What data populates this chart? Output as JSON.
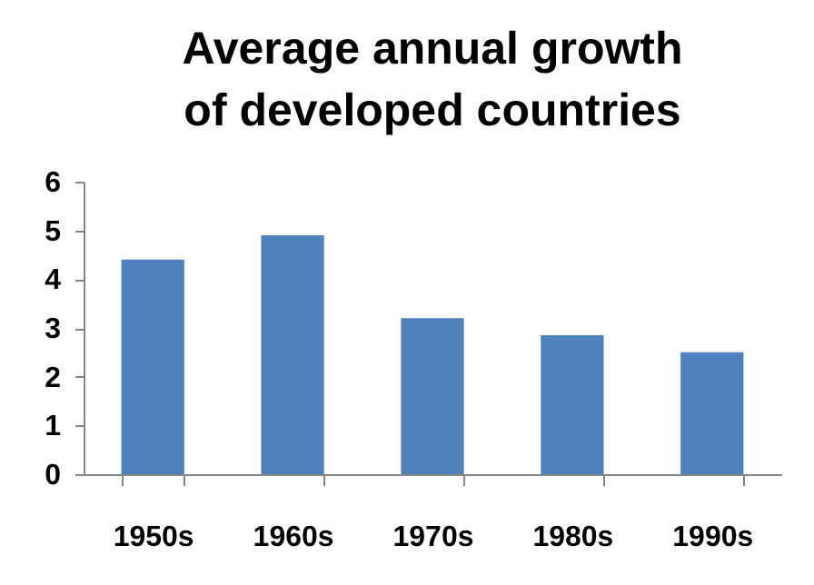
{
  "chart_data": {
    "type": "bar",
    "title": "Average annual growth of developed countries",
    "categories": [
      "1950s",
      "1960s",
      "1970s",
      "1980s",
      "1990s"
    ],
    "values": [
      4.4,
      4.9,
      3.2,
      2.85,
      2.5
    ],
    "color": "#4f81bd",
    "ylim": [
      0,
      6
    ],
    "yticks": [
      0,
      1,
      2,
      3,
      4,
      5,
      6
    ],
    "grid": false
  }
}
